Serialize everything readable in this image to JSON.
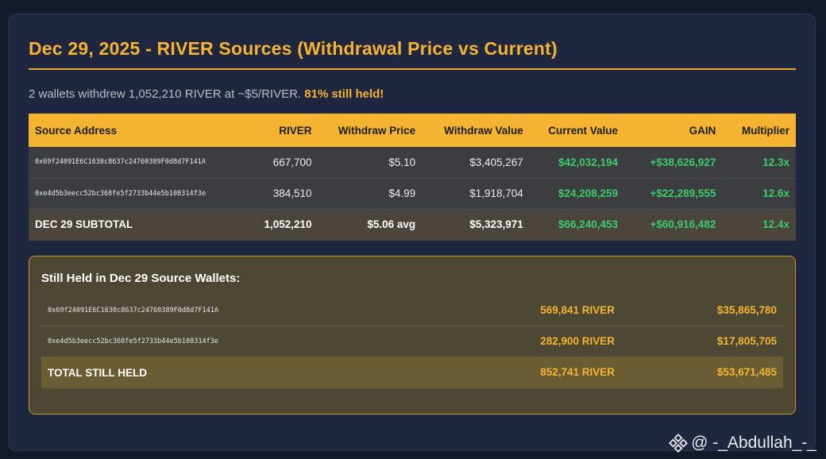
{
  "title": "Dec 29, 2025 - RIVER Sources (Withdrawal Price vs Current)",
  "summary": {
    "text": "2 wallets withdrew 1,052,210 RIVER at ~$5/RIVER.",
    "highlight": "81% still held!"
  },
  "table": {
    "headers": [
      "Source Address",
      "RIVER",
      "Withdraw Price",
      "Withdraw Value",
      "Current Value",
      "GAIN",
      "Multiplier"
    ],
    "rows": [
      {
        "address": "0x69f24091E6C1630c8637c24760389F0d8d7F141A",
        "river": "667,700",
        "withdraw_price": "$5.10",
        "withdraw_value": "$3,405,267",
        "current_value": "$42,032,194",
        "gain": "+$38,626,927",
        "multiplier": "12.3x"
      },
      {
        "address": "0xe4d5b3eecc52bc368fe5f2733b44e5b108314f3e",
        "river": "384,510",
        "withdraw_price": "$4.99",
        "withdraw_value": "$1,918,704",
        "current_value": "$24,208,259",
        "gain": "+$22,289,555",
        "multiplier": "12.6x"
      }
    ],
    "subtotal": {
      "label": "DEC 29 SUBTOTAL",
      "river": "1,052,210",
      "withdraw_price": "$5.06 avg",
      "withdraw_value": "$5,323,971",
      "current_value": "$66,240,453",
      "gain": "+$60,916,482",
      "multiplier": "12.4x"
    }
  },
  "held": {
    "title": "Still Held in Dec 29 Source Wallets:",
    "rows": [
      {
        "address": "0x69f24091E6C1630c8637c24760389F0d8d7F141A",
        "amount": "569,841 RIVER",
        "value": "$35,865,780"
      },
      {
        "address": "0xe4d5b3eecc52bc368fe5f2733b44e5b108314f3e",
        "amount": "282,900 RIVER",
        "value": "$17,805,705"
      }
    ],
    "total": {
      "label": "TOTAL STILL HELD",
      "amount": "852,741 RIVER",
      "value": "$53,671,485"
    }
  },
  "watermark": {
    "icon": "binance-logo-icon",
    "text": "@ -_Abdullah_-_"
  },
  "colors": {
    "accent": "#f4b431",
    "positive": "#3ccb6a",
    "background": "#1f2640"
  }
}
